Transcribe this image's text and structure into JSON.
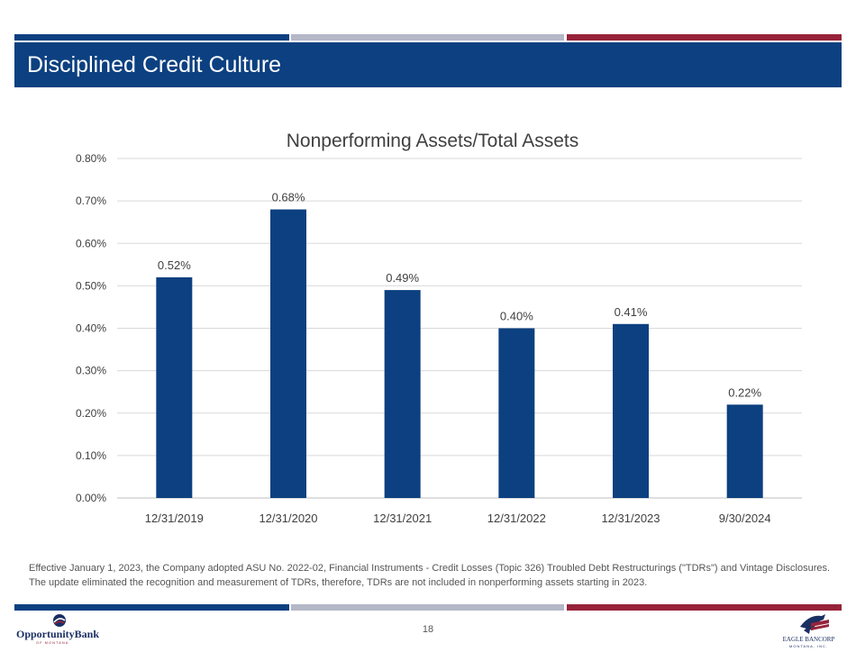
{
  "header": {
    "title": "Disciplined Credit Culture"
  },
  "colors": {
    "brand_blue": "#0c4080",
    "brand_grey": "#b4b8c7",
    "brand_red": "#97233a",
    "bar": "#0c4080"
  },
  "chart_data": {
    "type": "bar",
    "title": "Nonperforming Assets/Total Assets",
    "categories": [
      "12/31/2019",
      "12/31/2020",
      "12/31/2021",
      "12/31/2022",
      "12/31/2023",
      "9/30/2024"
    ],
    "values": [
      0.52,
      0.68,
      0.49,
      0.4,
      0.41,
      0.22
    ],
    "data_labels": [
      "0.52%",
      "0.68%",
      "0.49%",
      "0.40%",
      "0.41%",
      "0.22%"
    ],
    "ylim": [
      0,
      0.8
    ],
    "yticks": [
      0,
      0.1,
      0.2,
      0.3,
      0.4,
      0.5,
      0.6,
      0.7,
      0.8
    ],
    "ytick_labels": [
      "0.00%",
      "0.10%",
      "0.20%",
      "0.30%",
      "0.40%",
      "0.50%",
      "0.60%",
      "0.70%",
      "0.80%"
    ],
    "grid": true,
    "xlabel": "",
    "ylabel": ""
  },
  "footnote": "Effective January 1, 2023, the Company adopted ASU No. 2022-02, Financial Instruments - Credit Losses (Topic 326) Troubled Debt Restructurings (\"TDRs\") and Vintage Disclosures. The update eliminated the recognition and measurement of TDRs, therefore, TDRs are not included in nonperforming assets starting in 2023.",
  "footer": {
    "page_number": "18",
    "logo_left": {
      "name": "OpportunityBank",
      "sub": "OF MONTANA",
      "icon": "opportunity-bank-logo-icon"
    },
    "logo_right": {
      "name": "EAGLE BANCORP",
      "sub": "MONTANA, INC.",
      "icon": "eagle-flag-logo-icon"
    }
  }
}
